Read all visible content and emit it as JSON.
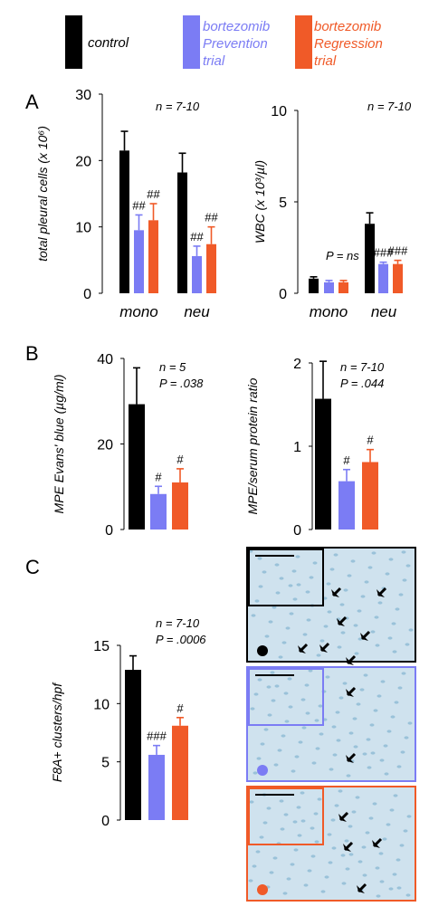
{
  "colors": {
    "control": "#000000",
    "prevention": "#7b7cf4",
    "regression": "#f05a28",
    "micrograph_bg": "#cfe2ee",
    "micrograph_cell": "#6fa8c8"
  },
  "legend": [
    {
      "key": "control",
      "lines": [
        "control"
      ]
    },
    {
      "key": "prevention",
      "lines": [
        "bortezomib",
        "Prevention",
        "trial"
      ]
    },
    {
      "key": "regression",
      "lines": [
        "bortezomib",
        "Regression",
        "trial"
      ]
    }
  ],
  "panel_labels": {
    "A": "A",
    "B": "B",
    "C": "C"
  },
  "chart_data": [
    {
      "id": "a1",
      "type": "bar",
      "ylabel": "total pleural cells (x 10⁶)",
      "ylim": [
        0,
        30
      ],
      "yticks": [
        "0",
        "10",
        "20",
        "30"
      ],
      "categories": [
        "mono",
        "neu"
      ],
      "annotations": [
        "n = 7-10"
      ],
      "series": [
        {
          "key": "control",
          "values": [
            21.5,
            18.2
          ],
          "errors": [
            2.9,
            2.9
          ],
          "sig": [
            "",
            ""
          ]
        },
        {
          "key": "prevention",
          "values": [
            9.5,
            5.6
          ],
          "errors": [
            2.3,
            1.5
          ],
          "sig": [
            "##",
            "##"
          ]
        },
        {
          "key": "regression",
          "values": [
            11.0,
            7.4
          ],
          "errors": [
            2.5,
            2.6
          ],
          "sig": [
            "##",
            "##"
          ]
        }
      ]
    },
    {
      "id": "a2",
      "type": "bar",
      "ylabel": "WBC (x 10³/µl)",
      "ylim": [
        0,
        10
      ],
      "yticks": [
        "0",
        "5",
        "10"
      ],
      "categories": [
        "mono",
        "neu"
      ],
      "annotations": [
        "n = 7-10",
        "P = ns"
      ],
      "series": [
        {
          "key": "control",
          "values": [
            0.8,
            3.8
          ],
          "errors": [
            0.1,
            0.6
          ],
          "sig": [
            "",
            ""
          ]
        },
        {
          "key": "prevention",
          "values": [
            0.6,
            1.6
          ],
          "errors": [
            0.1,
            0.1
          ],
          "sig": [
            "",
            "###"
          ]
        },
        {
          "key": "regression",
          "values": [
            0.6,
            1.6
          ],
          "errors": [
            0.1,
            0.2
          ],
          "sig": [
            "",
            "###"
          ]
        }
      ]
    },
    {
      "id": "b1",
      "type": "bar",
      "ylabel": "MPE Evans' blue (µg/ml)",
      "ylim": [
        0,
        40
      ],
      "yticks": [
        "0",
        "20",
        "40"
      ],
      "categories": [
        ""
      ],
      "annotations": [
        "n = 5",
        "P = .038"
      ],
      "series": [
        {
          "key": "control",
          "values": [
            29.3
          ],
          "errors": [
            8.5
          ],
          "sig": [
            ""
          ]
        },
        {
          "key": "prevention",
          "values": [
            8.3
          ],
          "errors": [
            1.8
          ],
          "sig": [
            "#"
          ]
        },
        {
          "key": "regression",
          "values": [
            11.0
          ],
          "errors": [
            3.2
          ],
          "sig": [
            "#"
          ]
        }
      ]
    },
    {
      "id": "b2",
      "type": "bar",
      "ylabel": "MPE/serum protein ratio",
      "ylim": [
        0,
        2
      ],
      "yticks": [
        "0",
        "1",
        "2"
      ],
      "categories": [
        ""
      ],
      "annotations": [
        "n = 7-10",
        "P = .044"
      ],
      "series": [
        {
          "key": "control",
          "values": [
            1.57
          ],
          "errors": [
            0.45
          ],
          "sig": [
            ""
          ]
        },
        {
          "key": "prevention",
          "values": [
            0.58
          ],
          "errors": [
            0.14
          ],
          "sig": [
            "#"
          ]
        },
        {
          "key": "regression",
          "values": [
            0.81
          ],
          "errors": [
            0.15
          ],
          "sig": [
            "#"
          ]
        }
      ]
    },
    {
      "id": "c1",
      "type": "bar",
      "ylabel": "F8A+ clusters/hpf",
      "ylim": [
        0,
        15
      ],
      "yticks": [
        "0",
        "5",
        "10",
        "15"
      ],
      "categories": [
        ""
      ],
      "annotations": [
        "n = 7-10",
        "P = .0006"
      ],
      "series": [
        {
          "key": "control",
          "values": [
            12.9
          ],
          "errors": [
            1.2
          ],
          "sig": [
            ""
          ]
        },
        {
          "key": "prevention",
          "values": [
            5.6
          ],
          "errors": [
            0.8
          ],
          "sig": [
            "###"
          ]
        },
        {
          "key": "regression",
          "values": [
            8.1
          ],
          "errors": [
            0.7
          ],
          "sig": [
            "#"
          ]
        }
      ]
    }
  ],
  "micrographs": [
    {
      "key": "control",
      "border": "#000000"
    },
    {
      "key": "prevention",
      "border": "#7b7cf4"
    },
    {
      "key": "regression",
      "border": "#f05a28"
    }
  ]
}
